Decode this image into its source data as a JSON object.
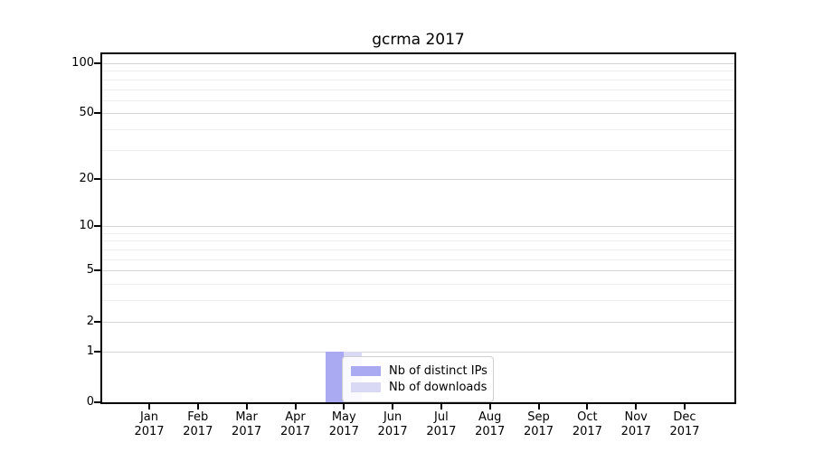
{
  "title": "gcrma 2017",
  "year": "2017",
  "chart_data": {
    "type": "bar",
    "title": "gcrma 2017",
    "categories": [
      "Jan 2017",
      "Feb 2017",
      "Mar 2017",
      "Apr 2017",
      "May 2017",
      "Jun 2017",
      "Jul 2017",
      "Aug 2017",
      "Sep 2017",
      "Oct 2017",
      "Nov 2017",
      "Dec 2017"
    ],
    "months": [
      "Jan",
      "Feb",
      "Mar",
      "Apr",
      "May",
      "Jun",
      "Jul",
      "Aug",
      "Sep",
      "Oct",
      "Nov",
      "Dec"
    ],
    "series": [
      {
        "name": "Nb of distinct IPs",
        "color": "#aaaaf2",
        "values": [
          0,
          0,
          0,
          0,
          1,
          0,
          0,
          0,
          0,
          0,
          0,
          0
        ]
      },
      {
        "name": "Nb of downloads",
        "color": "#d9d9f6",
        "values": [
          0,
          0,
          0,
          0,
          1,
          0,
          0,
          0,
          0,
          0,
          0,
          0
        ]
      }
    ],
    "xlabel": "",
    "ylabel": "",
    "yscale": "log1p",
    "ylim": [
      0,
      113
    ],
    "y_major_ticks": [
      0,
      1,
      2,
      5,
      10,
      20,
      50,
      100
    ],
    "y_minor_gridlines": [
      3,
      4,
      6,
      7,
      8,
      9,
      30,
      40,
      60,
      70,
      80,
      90
    ],
    "grid": true,
    "legend_position": "inside-bottom-center"
  },
  "colors": {
    "distinct_ips": "#aaaaf2",
    "downloads": "#d9d9f6",
    "grid_major": "#d4d4d4",
    "grid_minor": "#ededed",
    "spine": "#000000",
    "legend_border": "#cfcfcf"
  }
}
